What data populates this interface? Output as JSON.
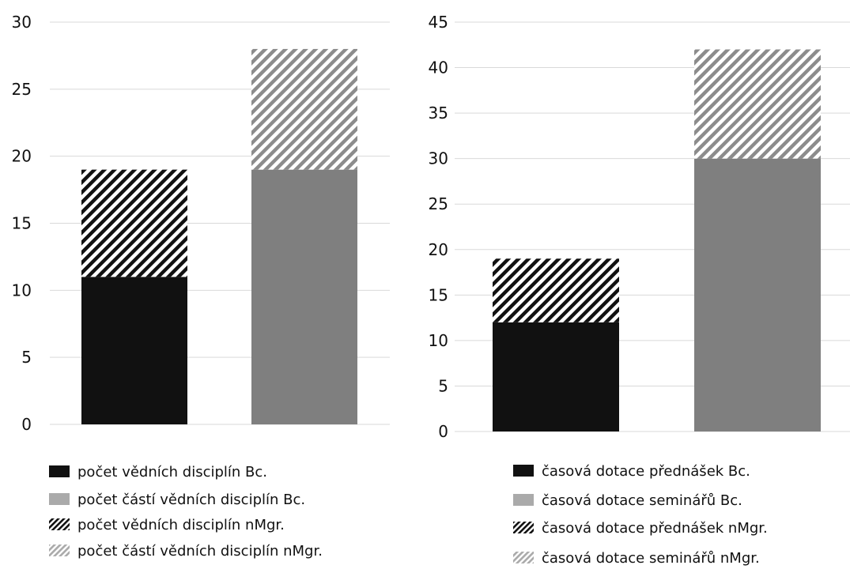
{
  "colors": {
    "black": "#111111",
    "gray": "#7f7f7f",
    "gray_light": "#aaaaaa",
    "grid": "#d9d9d9"
  },
  "chart_data": [
    {
      "type": "bar",
      "stacked": true,
      "categories": [
        "",
        ""
      ],
      "ylim": [
        0,
        30
      ],
      "yticks": [
        0,
        5,
        10,
        15,
        20,
        25,
        30
      ],
      "grid": true,
      "legend_position": "bottom",
      "series": [
        {
          "name": "počet vědních disciplín Bc.",
          "values": [
            11,
            0
          ],
          "style": "solid-black"
        },
        {
          "name": "počet částí vědních disciplín Bc.",
          "values": [
            0,
            19
          ],
          "style": "solid-gray"
        },
        {
          "name": "počet vědních disciplín nMgr.",
          "values": [
            8,
            0
          ],
          "style": "hatch-black"
        },
        {
          "name": "počet částí vědních disciplín nMgr.",
          "values": [
            0,
            9
          ],
          "style": "hatch-gray"
        }
      ]
    },
    {
      "type": "bar",
      "stacked": true,
      "categories": [
        "",
        ""
      ],
      "ylim": [
        0,
        45
      ],
      "yticks": [
        0,
        5,
        10,
        15,
        20,
        25,
        30,
        35,
        40,
        45
      ],
      "grid": true,
      "legend_position": "bottom",
      "series": [
        {
          "name": "časová dotace přednášek Bc.",
          "values": [
            12,
            0
          ],
          "style": "solid-black"
        },
        {
          "name": "časová dotace seminářů  Bc.",
          "values": [
            0,
            30
          ],
          "style": "solid-gray"
        },
        {
          "name": "časová dotace přednášek nMgr.",
          "values": [
            7,
            0
          ],
          "style": "hatch-black"
        },
        {
          "name": "časová dotace seminářů nMgr.",
          "values": [
            0,
            12
          ],
          "style": "hatch-gray"
        }
      ]
    }
  ]
}
